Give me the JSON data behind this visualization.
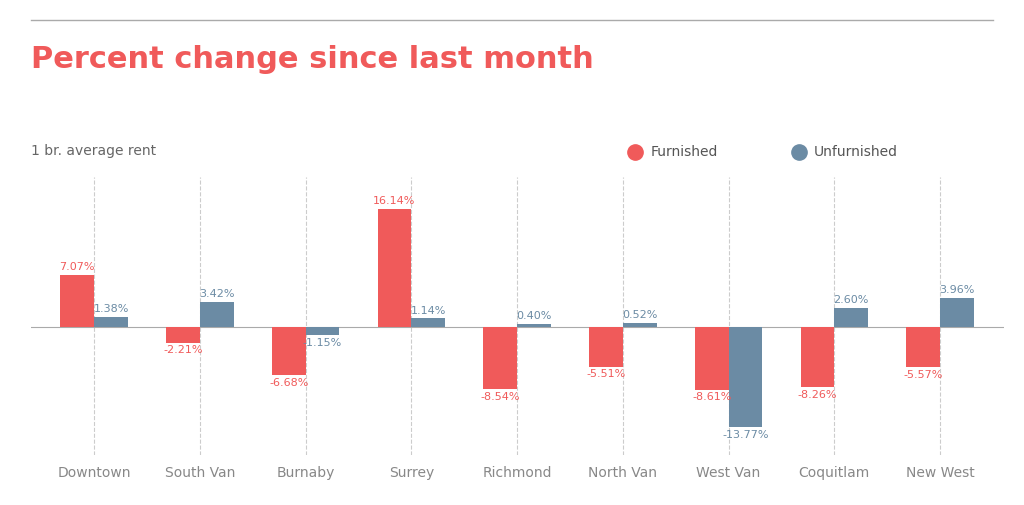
{
  "title": "Percent change since last month",
  "subtitle": "1 br. average rent",
  "categories": [
    "Downtown",
    "South Van",
    "Burnaby",
    "Surrey",
    "Richmond",
    "North Van",
    "West Van",
    "Coquitlam",
    "New West"
  ],
  "furnished": [
    7.07,
    -2.21,
    -6.68,
    16.14,
    -8.54,
    -5.51,
    -8.61,
    -8.26,
    -5.57
  ],
  "unfurnished": [
    1.38,
    3.42,
    -1.15,
    1.14,
    0.4,
    0.52,
    -13.77,
    2.6,
    3.96
  ],
  "furnished_color": "#F05A5A",
  "unfurnished_color": "#6B8BA4",
  "title_color": "#F05A5A",
  "subtitle_color": "#666666",
  "label_color": "#555555",
  "tick_color": "#888888",
  "background_color": "#FFFFFF",
  "bar_width": 0.32,
  "figsize": [
    10.24,
    5.05
  ],
  "dpi": 100,
  "ylim": [
    -17.5,
    20.5
  ],
  "title_fontsize": 22,
  "subtitle_fontsize": 10,
  "legend_fontsize": 10,
  "label_fontsize": 8,
  "tick_fontsize": 10
}
